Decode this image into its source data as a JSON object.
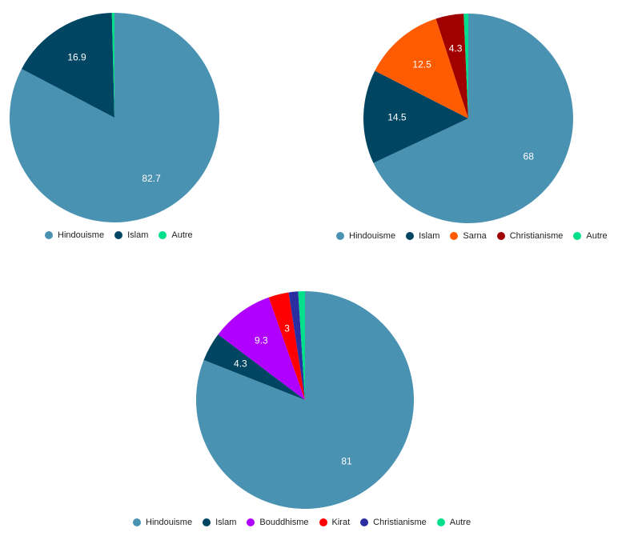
{
  "chart_data": [
    {
      "type": "pie",
      "title": "",
      "slices": [
        {
          "label": "Hindouisme",
          "value": 82.7,
          "color": "#4a92b2",
          "data_label": "82.7"
        },
        {
          "label": "Islam",
          "value": 16.9,
          "color": "#004562",
          "data_label": "16.9"
        },
        {
          "label": "Autre",
          "value": 0.4,
          "color": "#00e08a",
          "data_label": ""
        }
      ],
      "legend_position": "bottom"
    },
    {
      "type": "pie",
      "title": "",
      "slices": [
        {
          "label": "Hindouisme",
          "value": 68,
          "color": "#4a92b2",
          "data_label": "68"
        },
        {
          "label": "Islam",
          "value": 14.5,
          "color": "#004562",
          "data_label": "14.5"
        },
        {
          "label": "Sarna",
          "value": 12.5,
          "color": "#ff5b00",
          "data_label": "12.5"
        },
        {
          "label": "Christianisme",
          "value": 4.3,
          "color": "#a00000",
          "data_label": "4.3"
        },
        {
          "label": "Autre",
          "value": 0.7,
          "color": "#00e08a",
          "data_label": ""
        }
      ],
      "legend_position": "bottom"
    },
    {
      "type": "pie",
      "title": "",
      "slices": [
        {
          "label": "Hindouisme",
          "value": 81,
          "color": "#4a92b2",
          "data_label": "81"
        },
        {
          "label": "Islam",
          "value": 4.3,
          "color": "#004562",
          "data_label": "4.3"
        },
        {
          "label": "Bouddhisme",
          "value": 9.3,
          "color": "#b000ff",
          "data_label": "9.3"
        },
        {
          "label": "Kirat",
          "value": 3,
          "color": "#ff0000",
          "data_label": "3"
        },
        {
          "label": "Christianisme",
          "value": 1.4,
          "color": "#2a2ea0",
          "data_label": ""
        },
        {
          "label": "Autre",
          "value": 1,
          "color": "#00e08a",
          "data_label": ""
        }
      ],
      "legend_position": "bottom"
    }
  ]
}
